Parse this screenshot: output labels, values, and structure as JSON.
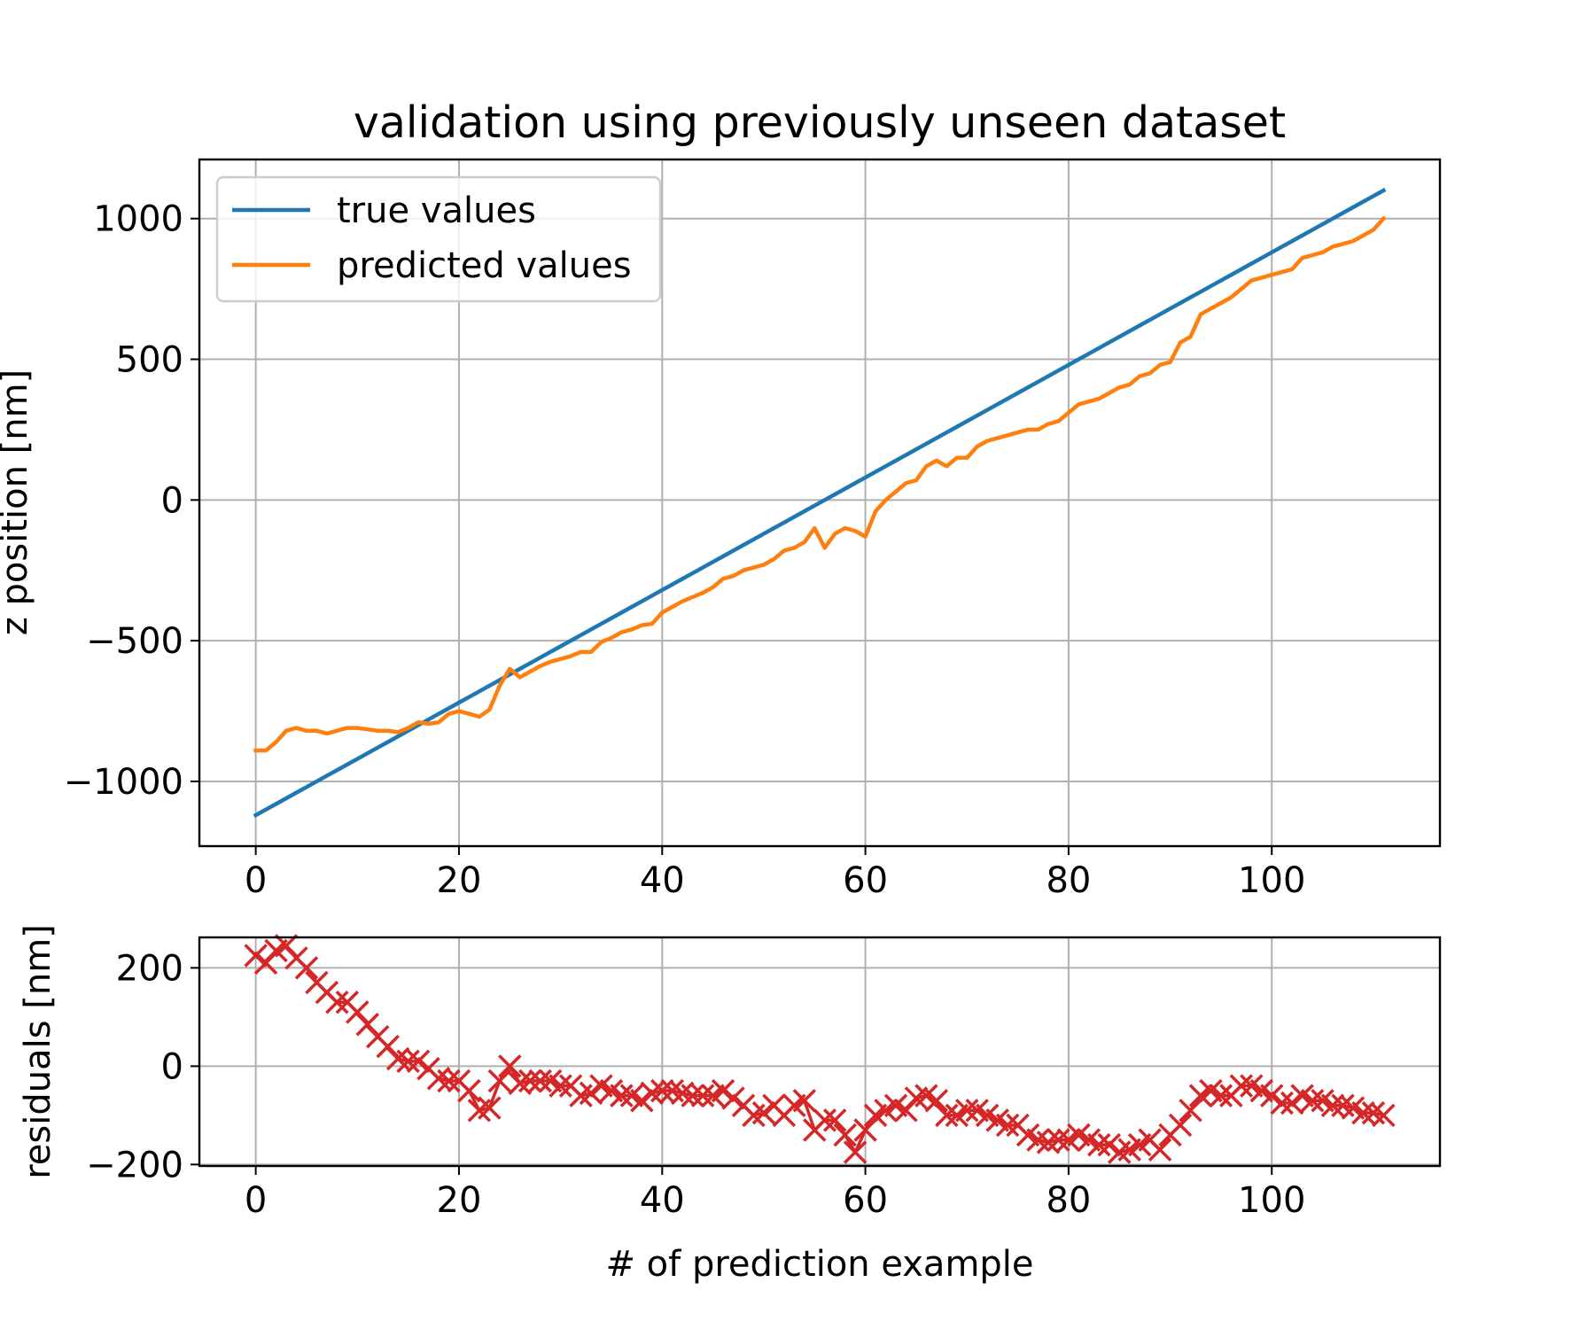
{
  "chart_data": [
    {
      "type": "line",
      "title": "validation using previously unseen dataset",
      "xlabel": "",
      "ylabel": "z position [nm]",
      "xlim": [
        -5.55,
        116.55
      ],
      "ylim": [
        -1230,
        1210
      ],
      "xticks": [
        0,
        20,
        40,
        60,
        80,
        100
      ],
      "xtick_labels": [
        "0",
        "20",
        "40",
        "60",
        "80",
        "100"
      ],
      "yticks": [
        -1000,
        -500,
        0,
        500,
        1000
      ],
      "ytick_labels": [
        "−1000",
        "−500",
        "0",
        "500",
        "1000"
      ],
      "grid": true,
      "legend": "upper-left",
      "x": [
        0,
        1,
        2,
        3,
        4,
        5,
        6,
        7,
        8,
        9,
        10,
        11,
        12,
        13,
        14,
        15,
        16,
        17,
        18,
        19,
        20,
        21,
        22,
        23,
        24,
        25,
        26,
        27,
        28,
        29,
        30,
        31,
        32,
        33,
        34,
        35,
        36,
        37,
        38,
        39,
        40,
        41,
        42,
        43,
        44,
        45,
        46,
        47,
        48,
        49,
        50,
        51,
        52,
        53,
        54,
        55,
        56,
        57,
        58,
        59,
        60,
        61,
        62,
        63,
        64,
        65,
        66,
        67,
        68,
        69,
        70,
        71,
        72,
        73,
        74,
        75,
        76,
        77,
        78,
        79,
        80,
        81,
        82,
        83,
        84,
        85,
        86,
        87,
        88,
        89,
        90,
        91,
        92,
        93,
        94,
        95,
        96,
        97,
        98,
        99,
        100,
        101,
        102,
        103,
        104,
        105,
        106,
        107,
        108,
        109,
        110,
        111
      ],
      "series": [
        {
          "name": "true values",
          "color": "#1f77b4",
          "values": [
            -1120,
            -1100,
            -1080,
            -1060,
            -1040,
            -1020,
            -1000,
            -980,
            -960,
            -940,
            -920,
            -900,
            -880,
            -860,
            -840,
            -820,
            -800,
            -780,
            -760,
            -740,
            -720,
            -700,
            -680,
            -660,
            -640,
            -620,
            -600,
            -580,
            -560,
            -540,
            -520,
            -500,
            -480,
            -460,
            -440,
            -420,
            -400,
            -380,
            -360,
            -340,
            -320,
            -300,
            -280,
            -260,
            -240,
            -220,
            -200,
            -180,
            -160,
            -140,
            -120,
            -100,
            -80,
            -60,
            -40,
            -20,
            0,
            20,
            40,
            60,
            80,
            100,
            120,
            140,
            160,
            180,
            200,
            220,
            240,
            260,
            280,
            300,
            320,
            340,
            360,
            380,
            400,
            420,
            440,
            460,
            480,
            500,
            520,
            540,
            560,
            580,
            600,
            620,
            640,
            660,
            680,
            700,
            720,
            740,
            760,
            780,
            800,
            820,
            840,
            860,
            880,
            900,
            920,
            940,
            960,
            980,
            1000,
            1020,
            1040,
            1060,
            1080,
            1100
          ]
        },
        {
          "name": "predicted values",
          "color": "#ff7f0e",
          "values": [
            -890,
            -890,
            -860,
            -820,
            -810,
            -820,
            -820,
            -830,
            -820,
            -810,
            -810,
            -815,
            -820,
            -820,
            -825,
            -810,
            -790,
            -795,
            -790,
            -760,
            -750,
            -760,
            -770,
            -745,
            -660,
            -600,
            -630,
            -610,
            -590,
            -575,
            -565,
            -555,
            -540,
            -540,
            -505,
            -490,
            -470,
            -460,
            -445,
            -440,
            -400,
            -380,
            -360,
            -345,
            -330,
            -310,
            -280,
            -270,
            -250,
            -240,
            -230,
            -210,
            -180,
            -170,
            -150,
            -100,
            -170,
            -120,
            -100,
            -110,
            -130,
            -40,
            0,
            30,
            60,
            70,
            120,
            140,
            120,
            150,
            150,
            190,
            210,
            220,
            230,
            240,
            250,
            250,
            270,
            280,
            310,
            340,
            350,
            360,
            380,
            400,
            410,
            440,
            450,
            480,
            490,
            560,
            580,
            660,
            680,
            700,
            720,
            750,
            780,
            790,
            800,
            810,
            820,
            860,
            870,
            880,
            900,
            910,
            920,
            940,
            960,
            1000
          ]
        }
      ]
    },
    {
      "type": "scatter",
      "title": "",
      "xlabel": "# of prediction example",
      "ylabel": "residuals [nm]",
      "xlim": [
        -5.55,
        116.55
      ],
      "ylim": [
        -203,
        262
      ],
      "xticks": [
        0,
        20,
        40,
        60,
        80,
        100
      ],
      "xtick_labels": [
        "0",
        "20",
        "40",
        "60",
        "80",
        "100"
      ],
      "yticks": [
        -200,
        0,
        200
      ],
      "ytick_labels": [
        "−200",
        "0",
        "200"
      ],
      "grid": true,
      "marker": "x",
      "series": [
        {
          "name": "",
          "color": "#d62728",
          "values": [
            225,
            210,
            235,
            245,
            220,
            200,
            170,
            150,
            130,
            130,
            110,
            85,
            60,
            40,
            15,
            10,
            10,
            -5,
            -25,
            -30,
            -30,
            -50,
            -90,
            -85,
            -30,
            0,
            -35,
            -30,
            -30,
            -30,
            -40,
            -40,
            -60,
            -55,
            -40,
            -50,
            -60,
            -60,
            -70,
            -55,
            -50,
            -50,
            -55,
            -60,
            -60,
            -60,
            -50,
            -65,
            -80,
            -100,
            -95,
            -80,
            -100,
            -80,
            -70,
            -130,
            -110,
            -110,
            -140,
            -175,
            -130,
            -100,
            -90,
            -80,
            -90,
            -65,
            -60,
            -70,
            -100,
            -100,
            -90,
            -90,
            -100,
            -110,
            -120,
            -120,
            -140,
            -150,
            -155,
            -150,
            -150,
            -140,
            -150,
            -160,
            -160,
            -175,
            -170,
            -160,
            -150,
            -170,
            -140,
            -120,
            -90,
            -60,
            -50,
            -60,
            -60,
            -40,
            -40,
            -50,
            -60,
            -75,
            -75,
            -60,
            -70,
            -70,
            -80,
            -80,
            -85,
            -95,
            -95,
            -100
          ]
        }
      ]
    }
  ]
}
